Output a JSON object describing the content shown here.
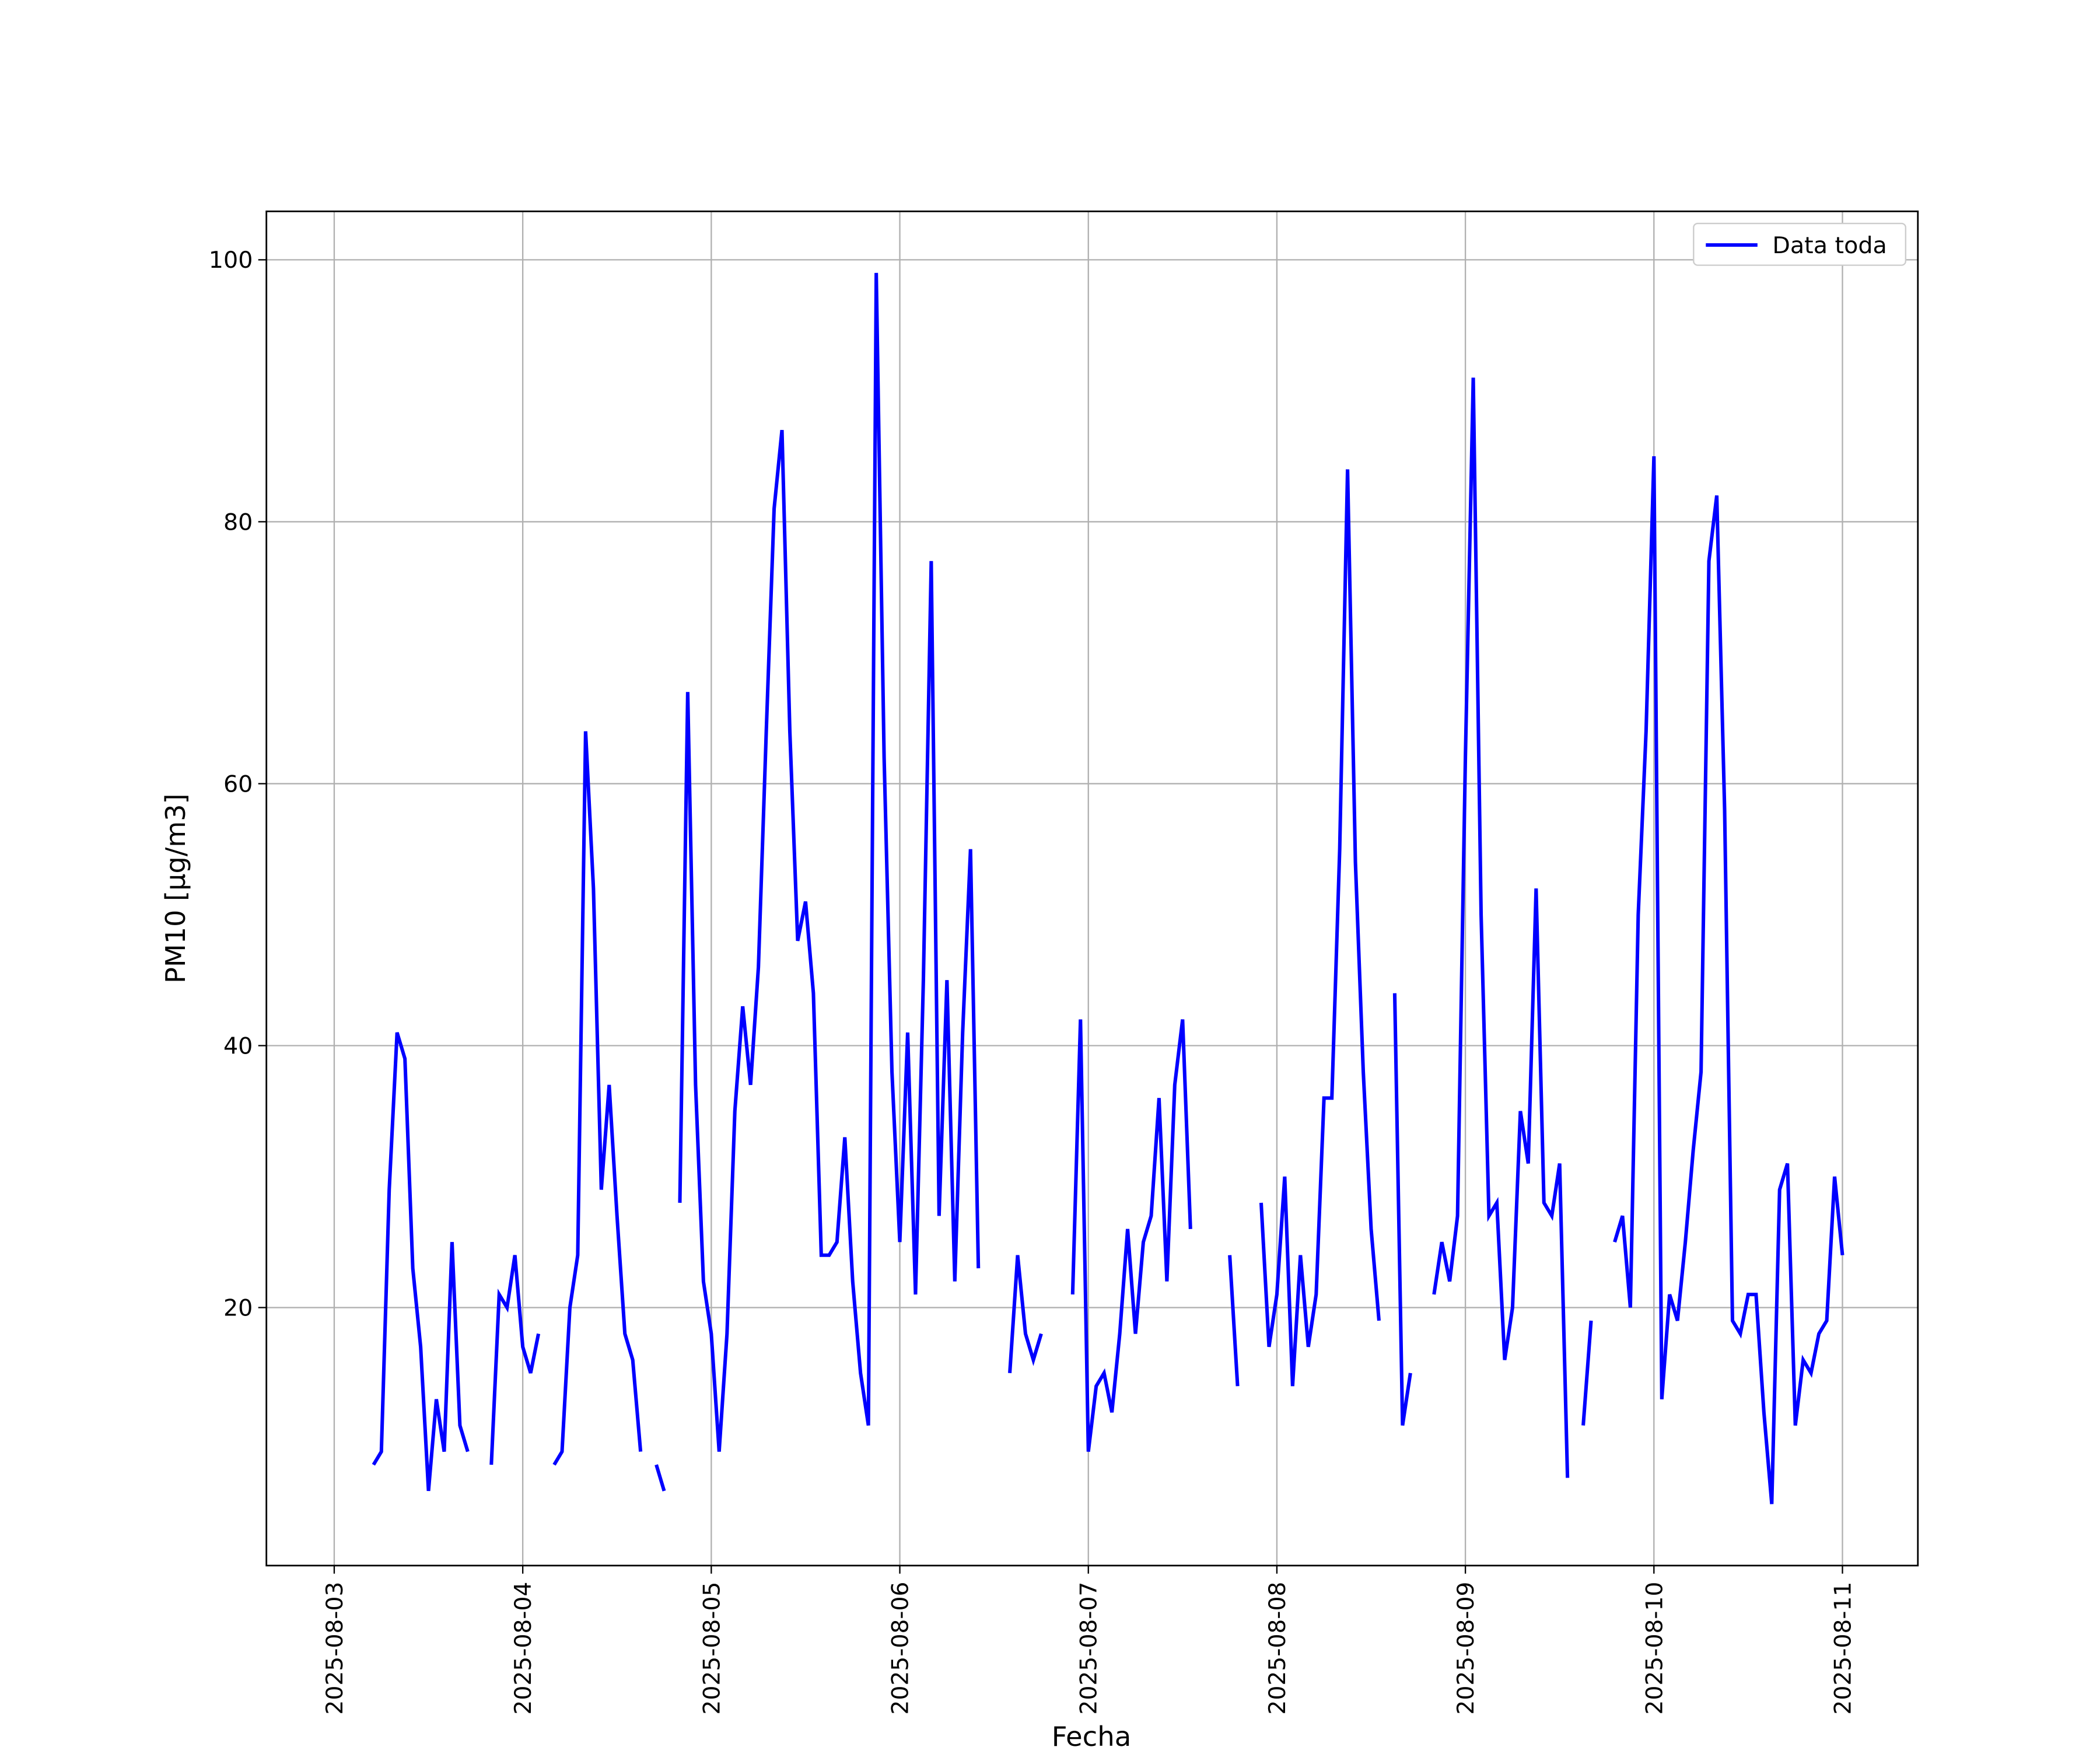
{
  "chart_data": {
    "type": "line",
    "xlabel": "Fecha",
    "ylabel": "PM10 [μg/m3]",
    "legend": "upper right",
    "grid": true,
    "xlim": [
      "2025-08-02 15:22",
      "2025-08-11 09:36"
    ],
    "xticks": [
      "2025-08-03",
      "2025-08-04",
      "2025-08-05",
      "2025-08-06",
      "2025-08-07",
      "2025-08-08",
      "2025-08-09",
      "2025-08-10",
      "2025-08-11"
    ],
    "ylim": [
      0.3,
      103.7
    ],
    "yticks": [
      20,
      40,
      60,
      80,
      100
    ],
    "x": [
      "2025-08-03 05:00",
      "2025-08-03 06:00",
      "2025-08-03 07:00",
      "2025-08-03 08:00",
      "2025-08-03 09:00",
      "2025-08-03 10:00",
      "2025-08-03 11:00",
      "2025-08-03 12:00",
      "2025-08-03 13:00",
      "2025-08-03 14:00",
      "2025-08-03 15:00",
      "2025-08-03 16:00",
      "2025-08-03 17:00",
      "2025-08-03 18:00",
      "2025-08-03 19:00",
      "2025-08-03 20:00",
      "2025-08-03 21:00",
      "2025-08-03 22:00",
      "2025-08-03 23:00",
      "2025-08-04 00:00",
      "2025-08-04 01:00",
      "2025-08-04 02:00",
      "2025-08-04 03:00",
      "2025-08-04 04:00",
      "2025-08-04 05:00",
      "2025-08-04 06:00",
      "2025-08-04 07:00",
      "2025-08-04 08:00",
      "2025-08-04 09:00",
      "2025-08-04 10:00",
      "2025-08-04 11:00",
      "2025-08-04 12:00",
      "2025-08-04 13:00",
      "2025-08-04 14:00",
      "2025-08-04 15:00",
      "2025-08-04 16:00",
      "2025-08-04 17:00",
      "2025-08-04 18:00",
      "2025-08-04 19:00",
      "2025-08-04 20:00",
      "2025-08-04 21:00",
      "2025-08-04 22:00",
      "2025-08-04 23:00",
      "2025-08-05 00:00",
      "2025-08-05 01:00",
      "2025-08-05 02:00",
      "2025-08-05 03:00",
      "2025-08-05 04:00",
      "2025-08-05 05:00",
      "2025-08-05 06:00",
      "2025-08-05 07:00",
      "2025-08-05 08:00",
      "2025-08-05 09:00",
      "2025-08-05 10:00",
      "2025-08-05 11:00",
      "2025-08-05 12:00",
      "2025-08-05 13:00",
      "2025-08-05 14:00",
      "2025-08-05 15:00",
      "2025-08-05 16:00",
      "2025-08-05 17:00",
      "2025-08-05 18:00",
      "2025-08-05 19:00",
      "2025-08-05 20:00",
      "2025-08-05 21:00",
      "2025-08-05 22:00",
      "2025-08-05 23:00",
      "2025-08-06 00:00",
      "2025-08-06 01:00",
      "2025-08-06 02:00",
      "2025-08-06 03:00",
      "2025-08-06 04:00",
      "2025-08-06 05:00",
      "2025-08-06 06:00",
      "2025-08-06 07:00",
      "2025-08-06 08:00",
      "2025-08-06 09:00",
      "2025-08-06 10:00",
      "2025-08-06 11:00",
      "2025-08-06 12:00",
      "2025-08-06 13:00",
      "2025-08-06 14:00",
      "2025-08-06 15:00",
      "2025-08-06 16:00",
      "2025-08-06 17:00",
      "2025-08-06 18:00",
      "2025-08-06 19:00",
      "2025-08-06 20:00",
      "2025-08-06 21:00",
      "2025-08-06 22:00",
      "2025-08-06 23:00",
      "2025-08-07 00:00",
      "2025-08-07 01:00",
      "2025-08-07 02:00",
      "2025-08-07 03:00",
      "2025-08-07 04:00",
      "2025-08-07 05:00",
      "2025-08-07 06:00",
      "2025-08-07 07:00",
      "2025-08-07 08:00",
      "2025-08-07 09:00",
      "2025-08-07 10:00",
      "2025-08-07 11:00",
      "2025-08-07 12:00",
      "2025-08-07 13:00",
      "2025-08-07 14:00",
      "2025-08-07 15:00",
      "2025-08-07 16:00",
      "2025-08-07 17:00",
      "2025-08-07 18:00",
      "2025-08-07 19:00",
      "2025-08-07 20:00",
      "2025-08-07 21:00",
      "2025-08-07 22:00",
      "2025-08-07 23:00",
      "2025-08-08 00:00",
      "2025-08-08 01:00",
      "2025-08-08 02:00",
      "2025-08-08 03:00",
      "2025-08-08 04:00",
      "2025-08-08 05:00",
      "2025-08-08 06:00",
      "2025-08-08 07:00",
      "2025-08-08 08:00",
      "2025-08-08 09:00",
      "2025-08-08 10:00",
      "2025-08-08 11:00",
      "2025-08-08 12:00",
      "2025-08-08 13:00",
      "2025-08-08 14:00",
      "2025-08-08 15:00",
      "2025-08-08 16:00",
      "2025-08-08 17:00",
      "2025-08-08 18:00",
      "2025-08-08 19:00",
      "2025-08-08 20:00",
      "2025-08-08 21:00",
      "2025-08-08 22:00",
      "2025-08-08 23:00",
      "2025-08-09 00:00",
      "2025-08-09 01:00",
      "2025-08-09 02:00",
      "2025-08-09 03:00",
      "2025-08-09 04:00",
      "2025-08-09 05:00",
      "2025-08-09 06:00",
      "2025-08-09 07:00",
      "2025-08-09 08:00",
      "2025-08-09 09:00",
      "2025-08-09 10:00",
      "2025-08-09 11:00",
      "2025-08-09 12:00",
      "2025-08-09 13:00",
      "2025-08-09 14:00",
      "2025-08-09 15:00",
      "2025-08-09 16:00",
      "2025-08-09 17:00",
      "2025-08-09 18:00",
      "2025-08-09 19:00",
      "2025-08-09 20:00",
      "2025-08-09 21:00",
      "2025-08-09 22:00",
      "2025-08-09 23:00",
      "2025-08-10 00:00",
      "2025-08-10 01:00",
      "2025-08-10 02:00",
      "2025-08-10 03:00",
      "2025-08-10 04:00",
      "2025-08-10 05:00",
      "2025-08-10 06:00",
      "2025-08-10 07:00",
      "2025-08-10 08:00",
      "2025-08-10 09:00",
      "2025-08-10 10:00",
      "2025-08-10 11:00",
      "2025-08-10 12:00",
      "2025-08-10 13:00",
      "2025-08-10 14:00",
      "2025-08-10 15:00",
      "2025-08-10 16:00",
      "2025-08-10 17:00",
      "2025-08-10 18:00",
      "2025-08-10 19:00",
      "2025-08-10 20:00",
      "2025-08-10 21:00",
      "2025-08-10 22:00",
      "2025-08-10 23:00",
      "2025-08-11 00:00"
    ],
    "series": [
      {
        "name": "Data toda",
        "color": "#0000ff",
        "values": [
          8,
          9,
          29,
          41,
          39,
          23,
          17,
          6,
          13,
          9,
          25,
          11,
          9,
          null,
          null,
          8,
          21,
          20,
          24,
          17,
          15,
          18,
          null,
          8,
          9,
          20,
          24,
          64,
          52,
          29,
          37,
          27,
          18,
          16,
          9,
          null,
          8,
          6,
          null,
          28,
          67,
          37,
          22,
          18,
          9,
          18,
          35,
          43,
          37,
          46,
          64,
          81,
          87,
          64,
          48,
          51,
          44,
          24,
          24,
          25,
          33,
          22,
          15,
          11,
          99,
          62,
          38,
          25,
          41,
          21,
          45,
          77,
          27,
          45,
          22,
          41,
          55,
          23,
          null,
          null,
          null,
          15,
          24,
          18,
          16,
          18,
          null,
          null,
          null,
          21,
          42,
          9,
          14,
          15,
          12,
          18,
          26,
          18,
          25,
          27,
          36,
          22,
          37,
          42,
          26,
          null,
          null,
          null,
          null,
          24,
          14,
          null,
          null,
          28,
          17,
          21,
          30,
          14,
          24,
          17,
          21,
          36,
          36,
          55,
          84,
          54,
          38,
          26,
          19,
          null,
          44,
          11,
          15,
          null,
          null,
          21,
          25,
          22,
          27,
          62,
          91,
          50,
          27,
          28,
          16,
          20,
          35,
          31,
          52,
          28,
          27,
          31,
          7,
          null,
          11,
          19,
          null,
          null,
          25,
          27,
          20,
          50,
          64,
          85,
          13,
          21,
          19,
          25,
          32,
          38,
          77,
          82,
          58,
          19,
          18,
          21,
          21,
          12,
          5,
          29,
          31,
          11,
          16,
          15,
          18,
          19,
          30,
          24
        ]
      }
    ]
  }
}
